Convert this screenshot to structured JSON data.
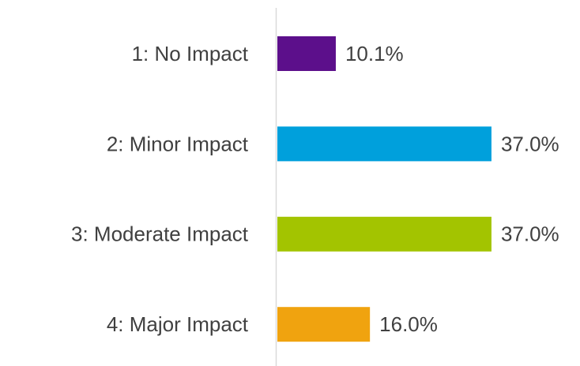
{
  "chart_data": {
    "type": "bar",
    "orientation": "horizontal",
    "categories": [
      "1: No Impact",
      "2: Minor Impact",
      "3: Moderate Impact",
      "4: Major Impact"
    ],
    "values": [
      10.1,
      37.0,
      37.0,
      16.0
    ],
    "value_labels": [
      "10.1%",
      "37.0%",
      "37.0%",
      "16.0%"
    ],
    "colors": [
      "#5c0f8b",
      "#00a0dc",
      "#a3c400",
      "#f0a30f"
    ]
  }
}
